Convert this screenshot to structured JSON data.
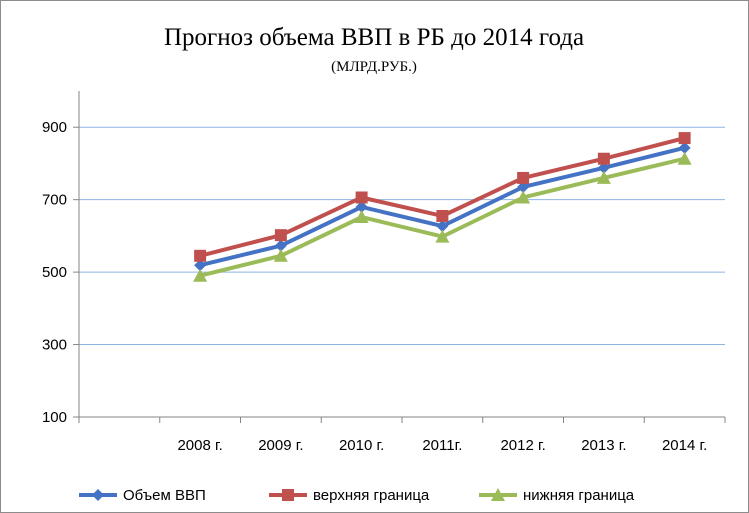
{
  "chart_data": {
    "type": "line",
    "title": "Прогноз объема ВВП в РБ до 2014 года",
    "subtitle": "(МЛРД.РУБ.)",
    "categories": [
      "2008 г.",
      "2009 г.",
      "2010 г.",
      "2011г.",
      "2012 г.",
      "2013 г.",
      "2014 г."
    ],
    "ylim": [
      100,
      1000
    ],
    "yticks": [
      100,
      300,
      500,
      700,
      900
    ],
    "grid": true,
    "legend_position": "bottom",
    "series": [
      {
        "name": "Объем ВВП",
        "color": "#4472C4",
        "marker": "diamond",
        "values": [
          519,
          573,
          680,
          627,
          735,
          788,
          843
        ]
      },
      {
        "name": "верхняя граница",
        "color": "#C0504D",
        "marker": "square",
        "values": [
          545,
          602,
          706,
          655,
          760,
          813,
          870
        ]
      },
      {
        "name": "нижняя граница",
        "color": "#9BBB59",
        "marker": "triangle",
        "values": [
          490,
          545,
          652,
          598,
          706,
          760,
          813
        ]
      }
    ]
  }
}
